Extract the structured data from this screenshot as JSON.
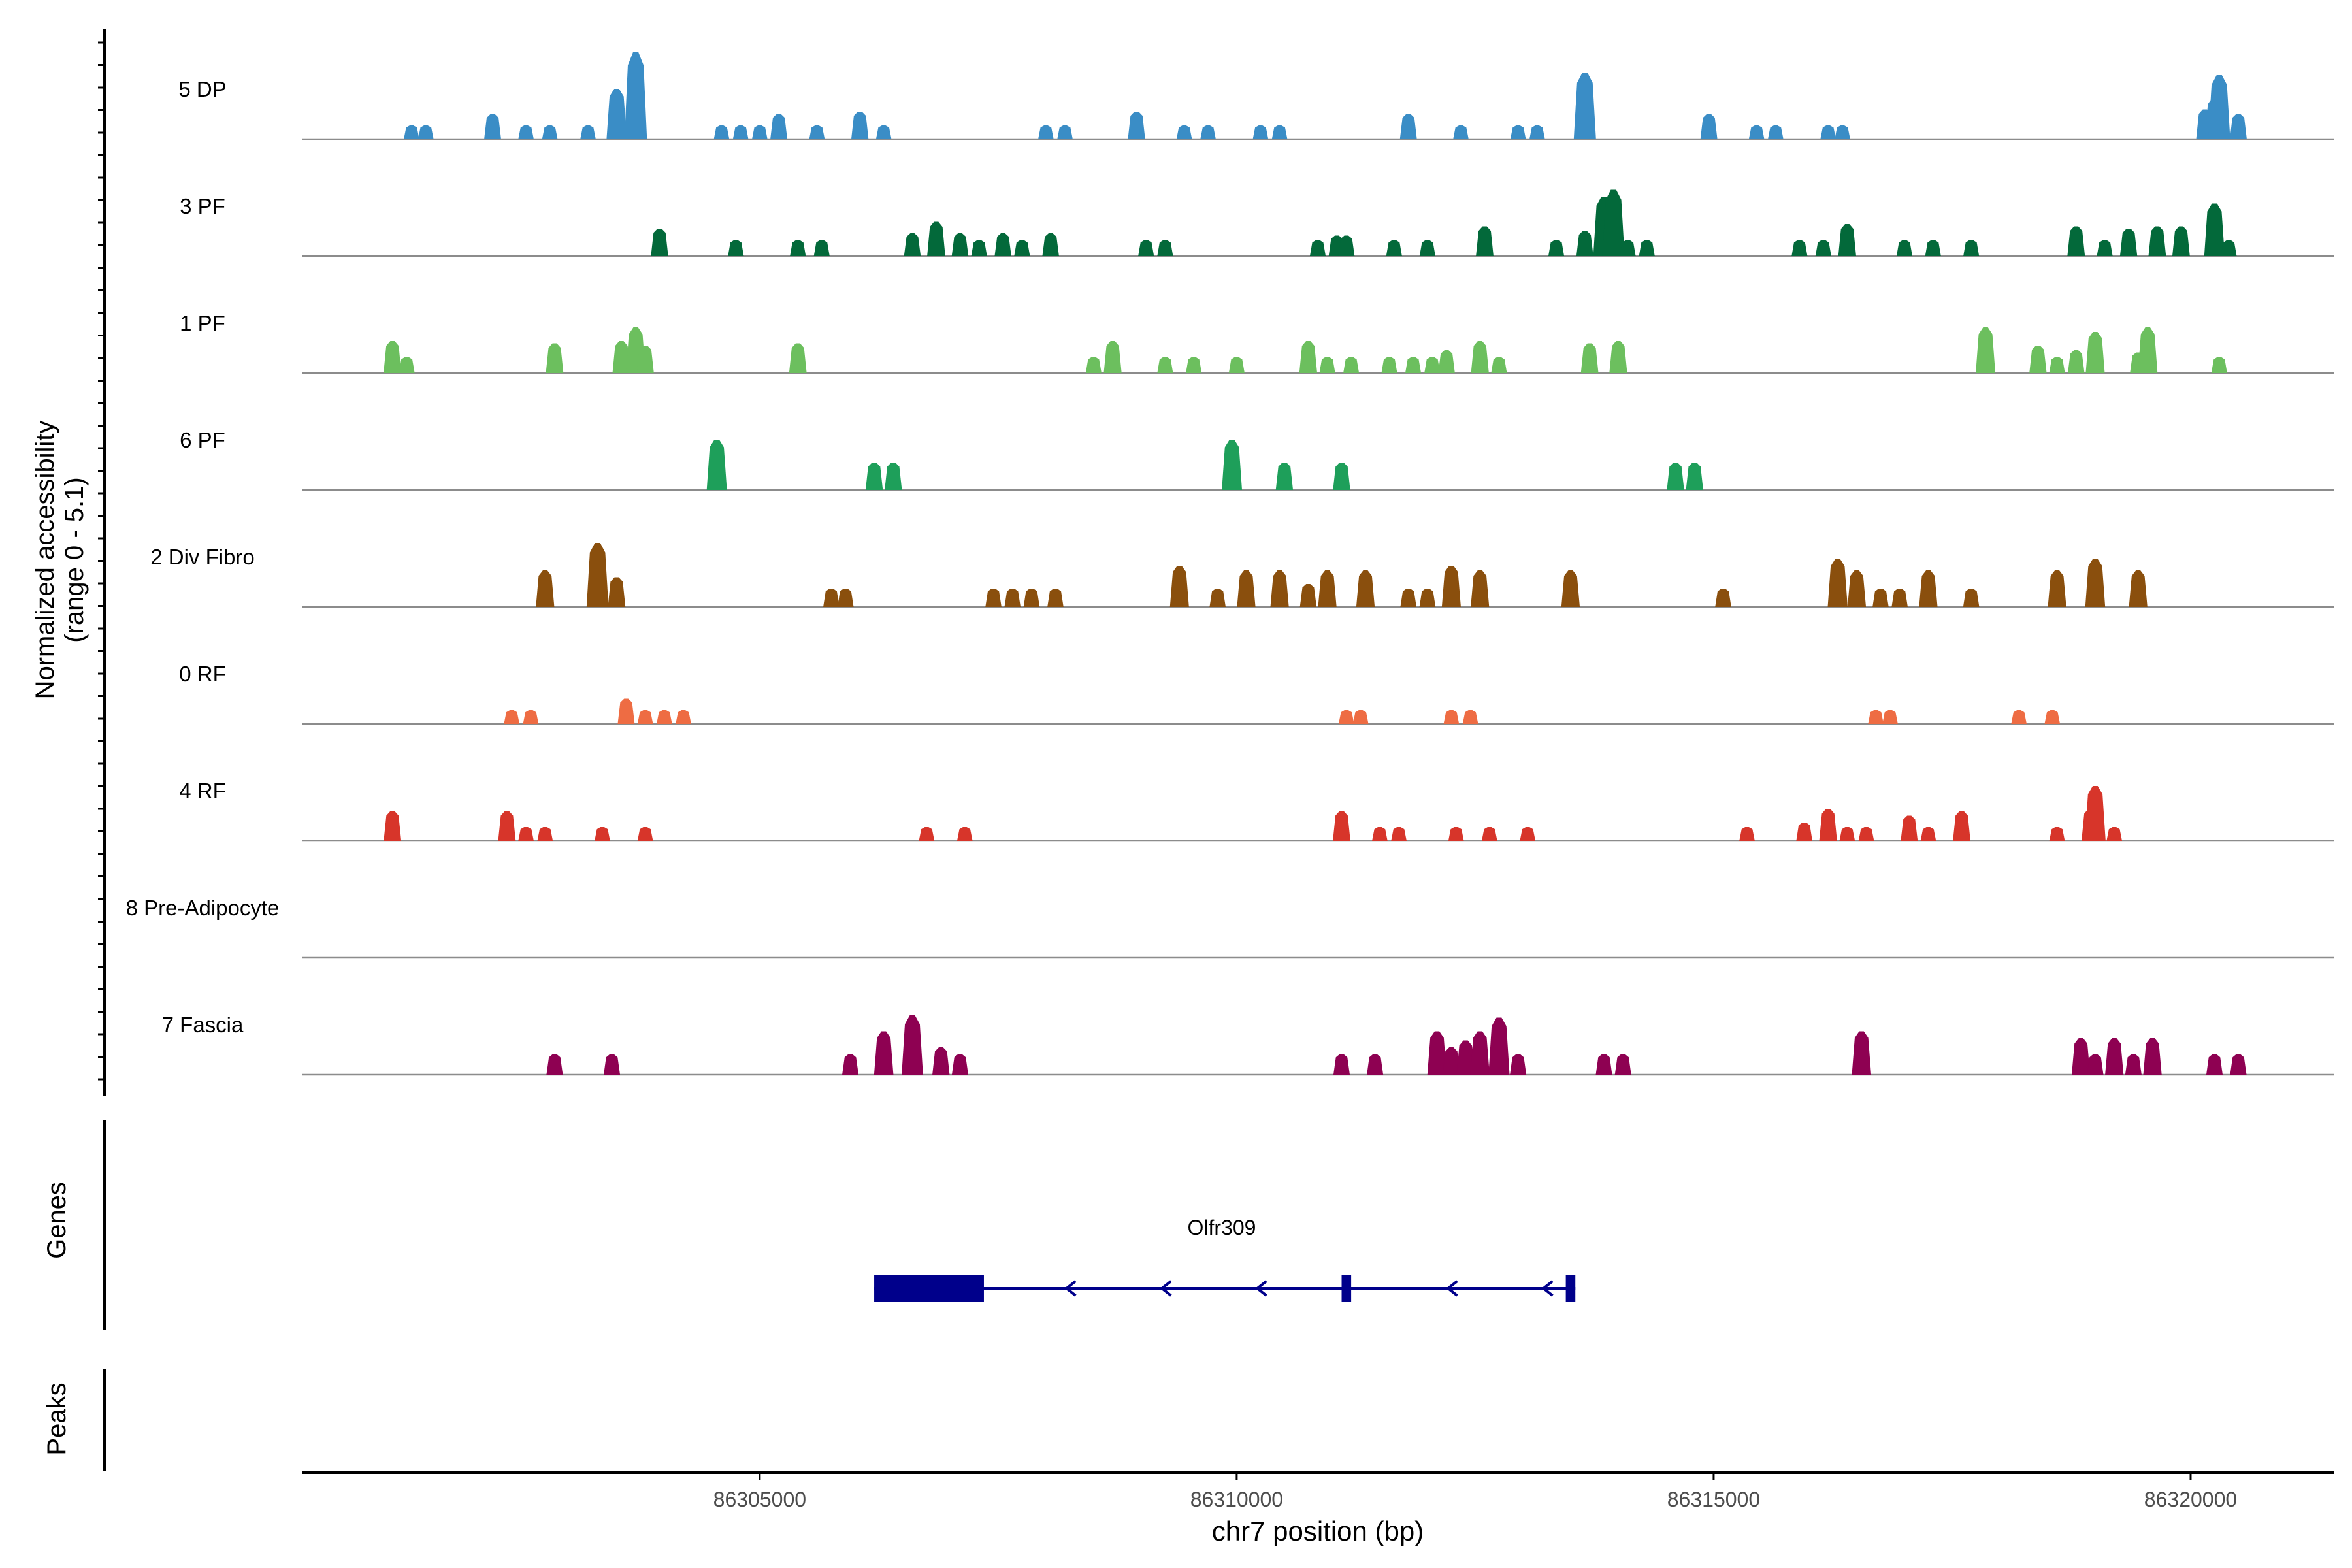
{
  "chart_data": {
    "type": "area",
    "title": "",
    "ylabel_line1": "Normalized accessibility",
    "ylabel_line2": "(range 0 - 5.1)",
    "y_range": [
      0,
      5.1
    ],
    "xlabel": "chr7 position (bp)",
    "xlim": [
      86300200,
      86321500
    ],
    "x_ticks": [
      {
        "value": 86305000,
        "label": "86305000"
      },
      {
        "value": 86310000,
        "label": "86310000"
      },
      {
        "value": 86315000,
        "label": "86315000"
      },
      {
        "value": 86320000,
        "label": "86320000"
      }
    ],
    "tracks": [
      {
        "name": "5 DP",
        "color": "#3A8DC6",
        "peaks": [
          [
            86301350,
            0.6
          ],
          [
            86301500,
            0.6
          ],
          [
            86302200,
            1.1
          ],
          [
            86302550,
            0.6
          ],
          [
            86302800,
            0.6
          ],
          [
            86303200,
            0.6
          ],
          [
            86303500,
            2.2
          ],
          [
            86303700,
            3.8
          ],
          [
            86304600,
            0.6
          ],
          [
            86304800,
            0.6
          ],
          [
            86305000,
            0.6
          ],
          [
            86305200,
            1.1
          ],
          [
            86305600,
            0.6
          ],
          [
            86306050,
            1.2
          ],
          [
            86306300,
            0.6
          ],
          [
            86308000,
            0.6
          ],
          [
            86308200,
            0.6
          ],
          [
            86308950,
            0.9
          ],
          [
            86308950,
            1.2
          ],
          [
            86309450,
            0.6
          ],
          [
            86309700,
            0.6
          ],
          [
            86310250,
            0.6
          ],
          [
            86310450,
            0.6
          ],
          [
            86311800,
            0.9
          ],
          [
            86311800,
            1.1
          ],
          [
            86312350,
            0.6
          ],
          [
            86312950,
            0.6
          ],
          [
            86313150,
            0.6
          ],
          [
            86313650,
            1.6
          ],
          [
            86313650,
            2.9
          ],
          [
            86314950,
            1.1
          ],
          [
            86315450,
            0.6
          ],
          [
            86315650,
            0.6
          ],
          [
            86316200,
            0.6
          ],
          [
            86316350,
            0.6
          ],
          [
            86320150,
            1.3
          ],
          [
            86320250,
            1.8
          ],
          [
            86320300,
            2.8
          ],
          [
            86320500,
            1.1
          ]
        ]
      },
      {
        "name": "3 PF",
        "color": "#03693A",
        "peaks": [
          [
            86303950,
            0.7
          ],
          [
            86303950,
            1.2
          ],
          [
            86304750,
            0.7
          ],
          [
            86305400,
            0.7
          ],
          [
            86305650,
            0.7
          ],
          [
            86306600,
            1.0
          ],
          [
            86306850,
            1.5
          ],
          [
            86307100,
            1.0
          ],
          [
            86307300,
            0.7
          ],
          [
            86307550,
            1.0
          ],
          [
            86307750,
            0.7
          ],
          [
            86308050,
            1.0
          ],
          [
            86309050,
            0.7
          ],
          [
            86309250,
            0.7
          ],
          [
            86310850,
            0.7
          ],
          [
            86311050,
            0.9
          ],
          [
            86311150,
            0.9
          ],
          [
            86311650,
            0.7
          ],
          [
            86312000,
            0.7
          ],
          [
            86312600,
            1.3
          ],
          [
            86313350,
            0.7
          ],
          [
            86313650,
            1.1
          ],
          [
            86313850,
            2.6
          ],
          [
            86313950,
            2.9
          ],
          [
            86314100,
            0.7
          ],
          [
            86314300,
            0.7
          ],
          [
            86315900,
            0.7
          ],
          [
            86316150,
            0.7
          ],
          [
            86316400,
            1.4
          ],
          [
            86317000,
            0.7
          ],
          [
            86317300,
            0.7
          ],
          [
            86317700,
            0.7
          ],
          [
            86318800,
            1.3
          ],
          [
            86319100,
            0.7
          ],
          [
            86319350,
            1.2
          ],
          [
            86319650,
            1.3
          ],
          [
            86319900,
            1.3
          ],
          [
            86320250,
            2.3
          ],
          [
            86320400,
            0.7
          ]
        ]
      },
      {
        "name": "1 PF",
        "color": "#6CBF5E",
        "peaks": [
          [
            86301150,
            1.4
          ],
          [
            86301300,
            0.7
          ],
          [
            86302850,
            1.3
          ],
          [
            86303550,
            1.4
          ],
          [
            86303700,
            2.0
          ],
          [
            86303800,
            1.2
          ],
          [
            86305400,
            1.3
          ],
          [
            86308500,
            0.7
          ],
          [
            86308700,
            1.4
          ],
          [
            86309250,
            0.7
          ],
          [
            86309550,
            0.7
          ],
          [
            86310000,
            0.7
          ],
          [
            86310750,
            1.4
          ],
          [
            86310950,
            0.7
          ],
          [
            86311200,
            0.7
          ],
          [
            86311600,
            0.7
          ],
          [
            86311850,
            0.7
          ],
          [
            86312050,
            0.7
          ],
          [
            86312200,
            1.0
          ],
          [
            86312550,
            1.4
          ],
          [
            86312750,
            0.7
          ],
          [
            86313700,
            1.3
          ],
          [
            86314000,
            1.4
          ],
          [
            86317850,
            2.0
          ],
          [
            86318400,
            1.2
          ],
          [
            86318600,
            0.7
          ],
          [
            86318800,
            1.0
          ],
          [
            86319000,
            1.8
          ],
          [
            86319450,
            0.9
          ],
          [
            86319550,
            2.0
          ],
          [
            86320300,
            0.7
          ]
        ]
      },
      {
        "name": "6 PF",
        "color": "#1E9F5A",
        "peaks": [
          [
            86304550,
            2.2
          ],
          [
            86306200,
            1.2
          ],
          [
            86306400,
            1.2
          ],
          [
            86309950,
            2.2
          ],
          [
            86310500,
            1.2
          ],
          [
            86311100,
            1.2
          ],
          [
            86314600,
            1.2
          ],
          [
            86314800,
            1.2
          ]
        ]
      },
      {
        "name": "2 Div Fibro",
        "color": "#8A4F0D",
        "peaks": [
          [
            86302750,
            1.6
          ],
          [
            86303300,
            2.8
          ],
          [
            86303500,
            1.3
          ],
          [
            86305750,
            0.8
          ],
          [
            86305900,
            0.8
          ],
          [
            86307450,
            0.8
          ],
          [
            86307650,
            0.8
          ],
          [
            86307850,
            0.8
          ],
          [
            86308100,
            0.8
          ],
          [
            86309400,
            1.8
          ],
          [
            86309800,
            0.8
          ],
          [
            86310100,
            1.6
          ],
          [
            86310450,
            1.6
          ],
          [
            86310750,
            1.0
          ],
          [
            86310950,
            1.6
          ],
          [
            86311350,
            1.6
          ],
          [
            86311800,
            0.8
          ],
          [
            86312000,
            0.8
          ],
          [
            86312250,
            1.8
          ],
          [
            86312550,
            1.6
          ],
          [
            86313500,
            1.6
          ],
          [
            86315100,
            0.8
          ],
          [
            86316300,
            2.1
          ],
          [
            86316500,
            1.6
          ],
          [
            86316750,
            0.8
          ],
          [
            86316950,
            0.8
          ],
          [
            86317250,
            1.6
          ],
          [
            86317700,
            0.8
          ],
          [
            86318600,
            1.6
          ],
          [
            86319000,
            2.1
          ],
          [
            86319450,
            1.6
          ]
        ]
      },
      {
        "name": "0 RF",
        "color": "#EE6C43",
        "peaks": [
          [
            86302400,
            0.6
          ],
          [
            86302600,
            0.6
          ],
          [
            86303600,
            1.1
          ],
          [
            86303800,
            0.6
          ],
          [
            86304000,
            0.6
          ],
          [
            86304200,
            0.6
          ],
          [
            86311150,
            0.6
          ],
          [
            86311300,
            0.6
          ],
          [
            86312250,
            0.6
          ],
          [
            86312450,
            0.6
          ],
          [
            86316700,
            0.6
          ],
          [
            86316850,
            0.6
          ],
          [
            86318200,
            0.6
          ],
          [
            86318550,
            0.6
          ]
        ]
      },
      {
        "name": "4 RF",
        "color": "#D7352A",
        "peaks": [
          [
            86301150,
            1.3
          ],
          [
            86302350,
            1.3
          ],
          [
            86302550,
            0.6
          ],
          [
            86302750,
            0.6
          ],
          [
            86303350,
            0.6
          ],
          [
            86303800,
            0.6
          ],
          [
            86306750,
            0.6
          ],
          [
            86307150,
            0.6
          ],
          [
            86311100,
            1.3
          ],
          [
            86311500,
            0.6
          ],
          [
            86311700,
            0.6
          ],
          [
            86312300,
            0.6
          ],
          [
            86312650,
            0.6
          ],
          [
            86313050,
            0.6
          ],
          [
            86315350,
            0.6
          ],
          [
            86315950,
            0.8
          ],
          [
            86316200,
            1.4
          ],
          [
            86316400,
            0.6
          ],
          [
            86316600,
            0.6
          ],
          [
            86317050,
            1.1
          ],
          [
            86317250,
            0.6
          ],
          [
            86317600,
            1.3
          ],
          [
            86318600,
            0.6
          ],
          [
            86318950,
            1.4
          ],
          [
            86319000,
            2.4
          ],
          [
            86319200,
            0.6
          ]
        ]
      },
      {
        "name": "8 Pre-Adipocyte",
        "color": "#7A4E9E",
        "peaks": []
      },
      {
        "name": "7 Fascia",
        "color": "#8E0152",
        "peaks": [
          [
            86302850,
            0.9
          ],
          [
            86303450,
            0.9
          ],
          [
            86305950,
            0.9
          ],
          [
            86306300,
            1.9
          ],
          [
            86306600,
            2.6
          ],
          [
            86306900,
            1.2
          ],
          [
            86307100,
            0.9
          ],
          [
            86311100,
            0.9
          ],
          [
            86311450,
            0.9
          ],
          [
            86312100,
            1.9
          ],
          [
            86312250,
            1.2
          ],
          [
            86312400,
            1.5
          ],
          [
            86312550,
            1.9
          ],
          [
            86312750,
            2.5
          ],
          [
            86312950,
            0.9
          ],
          [
            86313850,
            0.9
          ],
          [
            86314050,
            0.9
          ],
          [
            86316550,
            1.9
          ],
          [
            86318850,
            1.6
          ],
          [
            86319000,
            0.9
          ],
          [
            86319200,
            1.6
          ],
          [
            86319400,
            0.9
          ],
          [
            86319600,
            1.6
          ],
          [
            86320250,
            0.9
          ],
          [
            86320500,
            0.9
          ]
        ]
      }
    ],
    "genes_label": "Genes",
    "peaks_label": "Peaks",
    "gene": {
      "name": "Olfr309",
      "color": "#00008B",
      "start": 86306200,
      "end": 86313550,
      "strand": "-",
      "exons": [
        [
          86306200,
          86307350
        ],
        [
          86311100,
          86311200
        ],
        [
          86313450,
          86313550
        ]
      ],
      "arrow_positions": [
        86308250,
        86309250,
        86310250,
        86312250,
        86313250
      ]
    }
  }
}
